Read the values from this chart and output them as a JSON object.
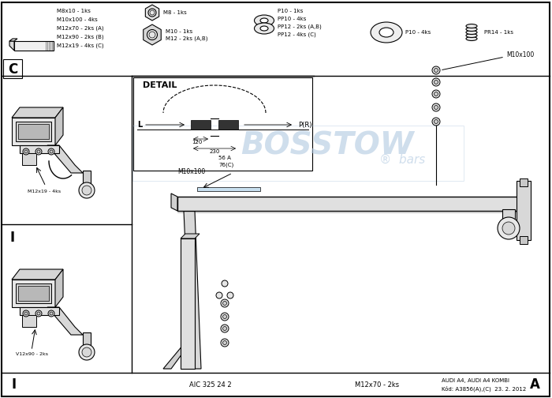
{
  "bg_color": "#ffffff",
  "border_color": "#000000",
  "gray_fill": "#e8e8e8",
  "dark_gray": "#555555",
  "mid_gray": "#888888",
  "light_gray": "#cccccc",
  "watermark_color": "#b0c8e0",
  "watermark_text": "BOSSTOW",
  "watermark_sub": "®  bars",
  "label_C": "C",
  "label_I": "I",
  "label_A": "A",
  "detail_label": "DETAIL",
  "bolt_labels": [
    "M8x10 - 1ks",
    "M10x100 - 4ks",
    "M12x70 - 2ks (A)",
    "M12x90 - 2ks (B)",
    "M12x19 - 4ks (C)"
  ],
  "nut_label1": "M8 - 1ks",
  "nut_label2": "M10 - 1ks\nM12 - 2ks (A,B)",
  "washer_labels": [
    "P10 - 1ks",
    "PP10 - 4ks",
    "PP12 - 2ks (A,B)",
    "PP12 - 4ks (C)"
  ],
  "disc_label": "P10 - 4ks",
  "spring_label": "PR14 - 1ks",
  "m10x100_top": "M10x100",
  "m10x100_bot": "M10x100",
  "label_c_ann": "M12x19 - 4ks",
  "label_i_ann": "V12x90 - 2ks",
  "bottom_left": "AIC 325 24 2",
  "bottom_mid": "M12x70 - 2ks",
  "bottom_right": "AUDI A4, AUDI A4 KOMBI\nKód: A3856(A),(C)  23. 2. 2012",
  "detail_L": "L",
  "detail_PR": "P(R)",
  "detail_120": "120",
  "detail_230": "230",
  "detail_56A": "56 A",
  "detail_76C": "76(C)"
}
